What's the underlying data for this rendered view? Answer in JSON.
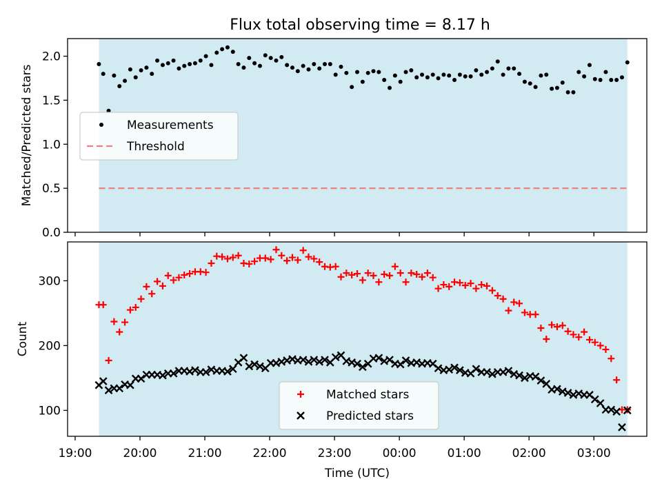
{
  "title": "Flux total observing time = 8.17 h",
  "colors": {
    "band": "#add8e6",
    "measurement": "#000000",
    "threshold": "#f08080",
    "matched": "#ff0000",
    "predicted": "#000000"
  },
  "chart_data": [
    {
      "type": "scatter",
      "panel": "top",
      "ylabel": "Matched/Predicted stars",
      "ylim": [
        0,
        2.2
      ],
      "yticks": [
        0.0,
        0.5,
        1.0,
        1.5,
        2.0
      ],
      "ytick_labels": [
        "0.0",
        "0.5",
        "1.0",
        "1.5",
        "2.0"
      ],
      "legend_placement": "center-left",
      "observation_span": [
        "19:22",
        "03:31"
      ],
      "series": [
        {
          "name": "Measurements",
          "marker": "dot",
          "x": [
            "19:22",
            "19:26",
            "19:31",
            "19:36",
            "19:41",
            "19:46",
            "19:51",
            "19:56",
            "20:01",
            "20:06",
            "20:11",
            "20:16",
            "20:21",
            "20:26",
            "20:31",
            "20:36",
            "20:41",
            "20:46",
            "20:51",
            "20:56",
            "21:01",
            "21:06",
            "21:11",
            "21:16",
            "21:21",
            "21:26",
            "21:31",
            "21:36",
            "21:41",
            "21:46",
            "21:51",
            "21:56",
            "22:01",
            "22:06",
            "22:11",
            "22:16",
            "22:21",
            "22:26",
            "22:31",
            "22:36",
            "22:41",
            "22:46",
            "22:51",
            "22:56",
            "23:01",
            "23:06",
            "23:11",
            "23:16",
            "23:21",
            "23:26",
            "23:31",
            "23:36",
            "23:41",
            "23:46",
            "23:51",
            "23:56",
            "00:01",
            "00:06",
            "00:11",
            "00:16",
            "00:21",
            "00:26",
            "00:31",
            "00:36",
            "00:41",
            "00:46",
            "00:51",
            "00:56",
            "01:01",
            "01:06",
            "01:11",
            "01:16",
            "01:21",
            "01:26",
            "01:31",
            "01:36",
            "01:41",
            "01:46",
            "01:51",
            "01:56",
            "02:01",
            "02:06",
            "02:11",
            "02:16",
            "02:21",
            "02:26",
            "02:31",
            "02:36",
            "02:41",
            "02:46",
            "02:51",
            "02:56",
            "03:01",
            "03:06",
            "03:11",
            "03:16",
            "03:21",
            "03:26",
            "03:31"
          ],
          "y": [
            1.91,
            1.8,
            1.38,
            1.78,
            1.66,
            1.72,
            1.85,
            1.76,
            1.84,
            1.87,
            1.8,
            1.95,
            1.9,
            1.92,
            1.95,
            1.86,
            1.89,
            1.91,
            1.92,
            1.95,
            2.0,
            1.9,
            2.04,
            2.08,
            2.1,
            2.05,
            1.91,
            1.87,
            1.98,
            1.92,
            1.89,
            2.01,
            1.98,
            1.95,
            1.99,
            1.9,
            1.87,
            1.83,
            1.89,
            1.85,
            1.91,
            1.86,
            1.91,
            1.91,
            1.79,
            1.88,
            1.81,
            1.65,
            1.82,
            1.71,
            1.81,
            1.83,
            1.82,
            1.73,
            1.64,
            1.78,
            1.71,
            1.82,
            1.84,
            1.76,
            1.79,
            1.76,
            1.79,
            1.75,
            1.79,
            1.78,
            1.73,
            1.79,
            1.77,
            1.77,
            1.84,
            1.79,
            1.82,
            1.86,
            1.94,
            1.79,
            1.86,
            1.86,
            1.8,
            1.71,
            1.69,
            1.65,
            1.78,
            1.79,
            1.63,
            1.64,
            1.7,
            1.59,
            1.59,
            1.82,
            1.77,
            1.9,
            1.74,
            1.73,
            1.82,
            1.73,
            1.73,
            1.76,
            1.93
          ]
        },
        {
          "name": "Threshold",
          "style": "dashed",
          "x": [
            "19:22",
            "03:31"
          ],
          "y": [
            0.5,
            0.5
          ]
        }
      ]
    },
    {
      "type": "scatter",
      "panel": "bottom",
      "ylabel": "Count",
      "xlabel": "Time (UTC)",
      "ylim": [
        60,
        360
      ],
      "yticks": [
        100,
        200,
        300
      ],
      "ytick_labels": [
        "100",
        "200",
        "300"
      ],
      "xtick_labels": [
        "19:00",
        "20:00",
        "21:00",
        "22:00",
        "23:00",
        "00:00",
        "01:00",
        "02:00",
        "03:00"
      ],
      "legend_placement": "lower-center",
      "observation_span": [
        "19:22",
        "03:31"
      ],
      "series": [
        {
          "name": "Matched stars",
          "marker": "plus",
          "x": [
            "19:22",
            "19:26",
            "19:31",
            "19:36",
            "19:41",
            "19:46",
            "19:51",
            "19:56",
            "20:01",
            "20:06",
            "20:11",
            "20:16",
            "20:21",
            "20:26",
            "20:31",
            "20:36",
            "20:41",
            "20:46",
            "20:51",
            "20:56",
            "21:01",
            "21:06",
            "21:11",
            "21:16",
            "21:21",
            "21:26",
            "21:31",
            "21:36",
            "21:41",
            "21:46",
            "21:51",
            "21:56",
            "22:01",
            "22:06",
            "22:11",
            "22:16",
            "22:21",
            "22:26",
            "22:31",
            "22:36",
            "22:41",
            "22:46",
            "22:51",
            "22:56",
            "23:01",
            "23:06",
            "23:11",
            "23:16",
            "23:21",
            "23:26",
            "23:31",
            "23:36",
            "23:41",
            "23:46",
            "23:51",
            "23:56",
            "00:01",
            "00:06",
            "00:11",
            "00:16",
            "00:21",
            "00:26",
            "00:31",
            "00:36",
            "00:41",
            "00:46",
            "00:51",
            "00:56",
            "01:01",
            "01:06",
            "01:11",
            "01:16",
            "01:21",
            "01:26",
            "01:31",
            "01:36",
            "01:41",
            "01:46",
            "01:51",
            "01:56",
            "02:01",
            "02:06",
            "02:11",
            "02:16",
            "02:21",
            "02:26",
            "02:31",
            "02:36",
            "02:41",
            "02:46",
            "02:51",
            "02:56",
            "03:01",
            "03:06",
            "03:11",
            "03:16",
            "03:21",
            "03:26",
            "03:31"
          ],
          "y": [
            263,
            263,
            177,
            237,
            221,
            236,
            255,
            259,
            272,
            291,
            280,
            299,
            292,
            308,
            301,
            305,
            309,
            311,
            314,
            314,
            313,
            327,
            338,
            337,
            334,
            336,
            339,
            327,
            326,
            330,
            335,
            335,
            333,
            348,
            339,
            331,
            336,
            332,
            347,
            337,
            334,
            329,
            322,
            321,
            322,
            306,
            312,
            309,
            311,
            301,
            312,
            308,
            298,
            310,
            308,
            322,
            312,
            298,
            312,
            310,
            306,
            312,
            305,
            288,
            294,
            291,
            298,
            297,
            293,
            296,
            288,
            294,
            292,
            285,
            277,
            272,
            254,
            267,
            265,
            251,
            248,
            248,
            227,
            210,
            232,
            229,
            231,
            222,
            217,
            213,
            221,
            209,
            205,
            200,
            194,
            180,
            147,
            101,
            101
          ]
        },
        {
          "name": "Predicted stars",
          "marker": "x",
          "x": [
            "19:22",
            "19:26",
            "19:31",
            "19:36",
            "19:41",
            "19:46",
            "19:51",
            "19:56",
            "20:01",
            "20:06",
            "20:11",
            "20:16",
            "20:21",
            "20:26",
            "20:31",
            "20:36",
            "20:41",
            "20:46",
            "20:51",
            "20:56",
            "21:01",
            "21:06",
            "21:11",
            "21:16",
            "21:21",
            "21:26",
            "21:31",
            "21:36",
            "21:41",
            "21:46",
            "21:51",
            "21:56",
            "22:01",
            "22:06",
            "22:11",
            "22:16",
            "22:21",
            "22:26",
            "22:31",
            "22:36",
            "22:41",
            "22:46",
            "22:51",
            "22:56",
            "23:01",
            "23:06",
            "23:11",
            "23:16",
            "23:21",
            "23:26",
            "23:31",
            "23:36",
            "23:41",
            "23:46",
            "23:51",
            "23:56",
            "00:01",
            "00:06",
            "00:11",
            "00:16",
            "00:21",
            "00:26",
            "00:31",
            "00:36",
            "00:41",
            "00:46",
            "00:51",
            "00:56",
            "01:01",
            "01:06",
            "01:11",
            "01:16",
            "01:21",
            "01:26",
            "01:31",
            "01:36",
            "01:41",
            "01:46",
            "01:51",
            "01:56",
            "02:01",
            "02:06",
            "02:11",
            "02:16",
            "02:21",
            "02:26",
            "02:31",
            "02:36",
            "02:41",
            "02:46",
            "02:51",
            "02:56",
            "03:01",
            "03:06",
            "03:11",
            "03:16",
            "03:21",
            "03:26",
            "03:31"
          ],
          "y": [
            139,
            145,
            131,
            134,
            134,
            140,
            139,
            149,
            149,
            155,
            155,
            155,
            154,
            157,
            157,
            161,
            161,
            160,
            162,
            159,
            159,
            163,
            161,
            161,
            160,
            164,
            174,
            181,
            168,
            171,
            168,
            165,
            173,
            173,
            175,
            177,
            179,
            177,
            178,
            175,
            178,
            175,
            178,
            174,
            182,
            185,
            176,
            174,
            172,
            167,
            172,
            180,
            181,
            176,
            178,
            172,
            171,
            177,
            173,
            174,
            172,
            173,
            172,
            165,
            162,
            163,
            166,
            162,
            158,
            157,
            164,
            159,
            159,
            156,
            159,
            159,
            161,
            156,
            154,
            150,
            153,
            152,
            146,
            141,
            132,
            133,
            129,
            127,
            124,
            126,
            124,
            124,
            117,
            111,
            101,
            101,
            98,
            74,
            100
          ]
        }
      ]
    }
  ]
}
